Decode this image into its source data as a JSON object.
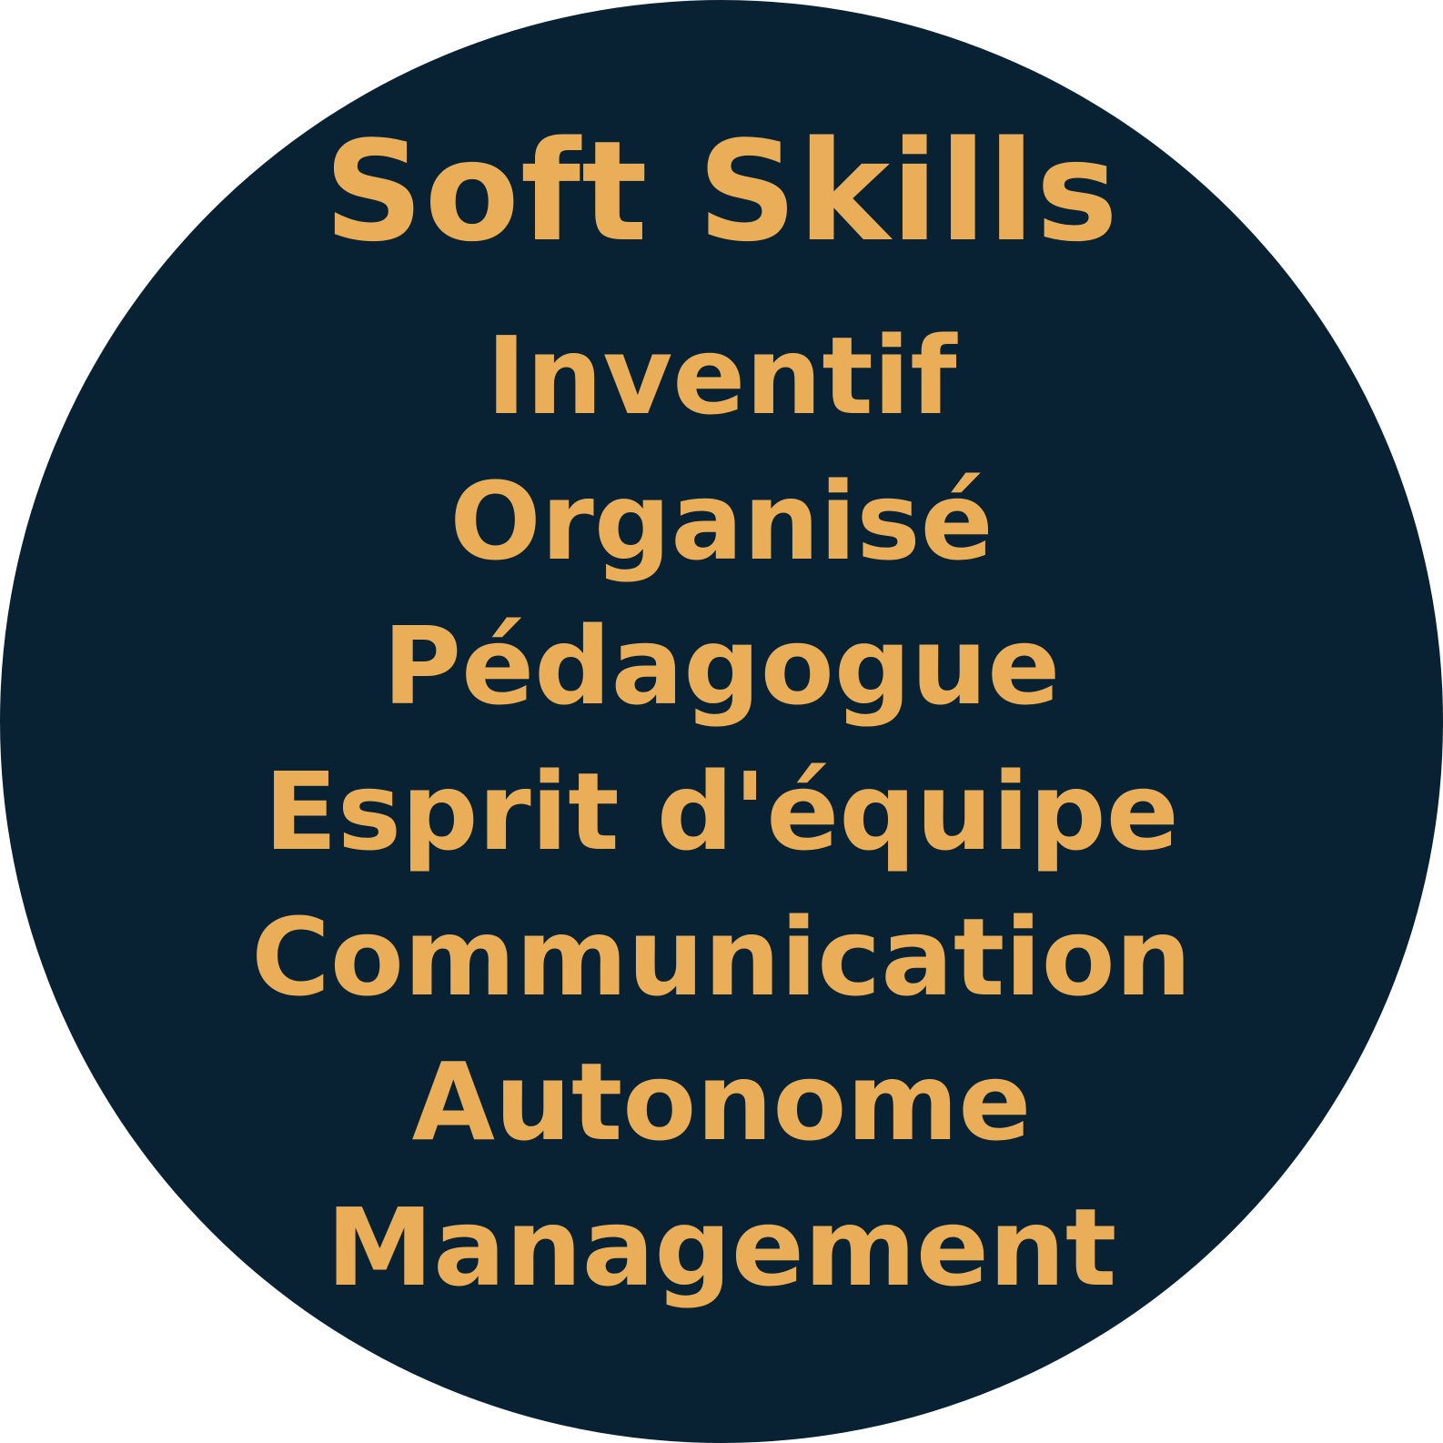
{
  "badge": {
    "title": "Soft Skills",
    "skills": [
      "Inventif",
      "Organisé",
      "Pédagogue",
      "Esprit d'équipe",
      "Communication",
      "Autonome",
      "Management"
    ]
  },
  "colors": {
    "background": "#082233",
    "text": "#ebae58",
    "page": "#ffffff"
  }
}
